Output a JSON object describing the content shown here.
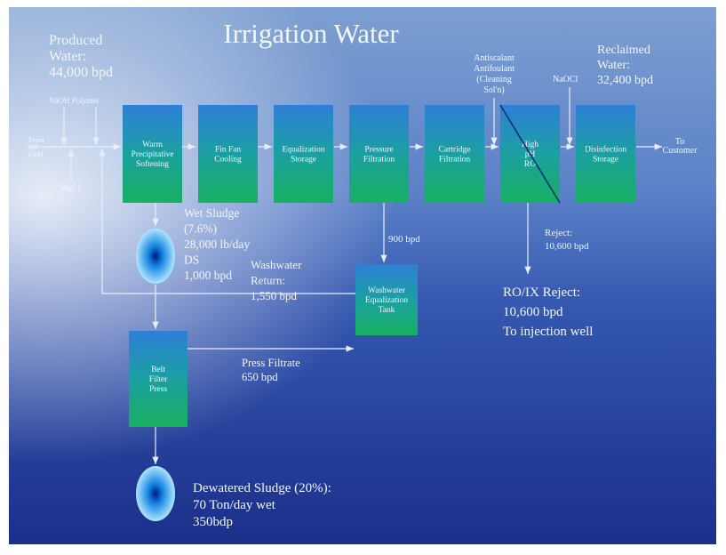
{
  "title": "Irrigation Water",
  "inputs": {
    "produced_water": [
      "Produced",
      "Water:",
      "44,000 bpd"
    ],
    "chemicals": "NaOH Polymer",
    "source": [
      "From",
      "Oil",
      "Field"
    ],
    "mgcl": [
      "MgCl",
      "2"
    ],
    "antiscalant": [
      "Antiscalant",
      "Antifoulant",
      "(Cleaning",
      "Sol'n)"
    ],
    "naocl": "NaOCl"
  },
  "output": {
    "reclaimed": [
      "Reclaimed",
      "Water:",
      "32,400 bpd"
    ],
    "destination": [
      "To",
      "Customer"
    ]
  },
  "units": [
    [
      "Warm",
      "Precipitative",
      "Softening"
    ],
    [
      "Fin Fan",
      "Cooling"
    ],
    [
      "Equalization",
      "Storage"
    ],
    [
      "Pressure",
      "Filtration"
    ],
    [
      "Cartridge",
      "Filtration"
    ],
    [
      "High",
      "pH",
      "RO"
    ],
    [
      "Disinfection",
      "Storage"
    ]
  ],
  "side_units": {
    "washwater_tank": [
      "Washwater",
      "Equalization",
      "Tank"
    ],
    "belt_press": [
      "Belt",
      "Filter",
      "Press"
    ]
  },
  "streams": {
    "wet_sludge": [
      "Wet Sludge",
      "(7.6%)",
      "28,000 lb/day",
      "DS",
      "1,000 bpd"
    ],
    "washwater_return": [
      "Washwater",
      "Return:",
      "1,550 bpd"
    ],
    "backwash": "900 bpd",
    "reject": [
      "Reject:",
      "10,600 bpd"
    ],
    "ro_reject": [
      "RO/IX Reject:",
      "10,600 bpd",
      "To injection well"
    ],
    "press_filtrate": [
      "Press Filtrate",
      "650 bpd"
    ],
    "dewatered": [
      "Dewatered Sludge (20%):",
      "70 Ton/day wet",
      "350bdp"
    ]
  }
}
